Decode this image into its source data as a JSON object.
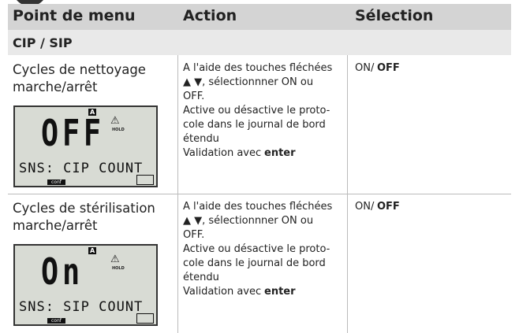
{
  "header": {
    "columns": [
      "Point de menu",
      "Action",
      "Sélection"
    ]
  },
  "section": "CIP / SIP",
  "rows": [
    {
      "menu_item": [
        "Cycles de nettoyage",
        "marche/arrêt"
      ],
      "display": {
        "value": "OFF",
        "line": "SNS: CIP COUNT",
        "mode": "A",
        "hold": "HOLD",
        "conf": "conf"
      },
      "action": [
        "A l'aide des touches fléchées",
        "▲ ▼, sélectionnner ON ou",
        "OFF.",
        "Active ou désactive le proto-",
        "cole dans le journal de bord",
        "étendu"
      ],
      "validation": [
        "Validation avec",
        "enter"
      ],
      "selection": [
        "ON/",
        "OFF"
      ]
    },
    {
      "menu_item": [
        "Cycles de stérilisation",
        "marche/arrêt"
      ],
      "display": {
        "value": "On",
        "line": "SNS: SIP COUNT",
        "mode": "A",
        "hold": "HOLD",
        "conf": "conf"
      },
      "action": [
        "A l'aide des touches fléchées",
        "▲ ▼, sélectionnner ON ou",
        "OFF.",
        "Active ou désactive le proto-",
        "cole dans le journal de bord",
        "étendu"
      ],
      "validation": [
        "Validation avec",
        "enter"
      ],
      "selection": [
        "ON/",
        "OFF"
      ]
    }
  ]
}
